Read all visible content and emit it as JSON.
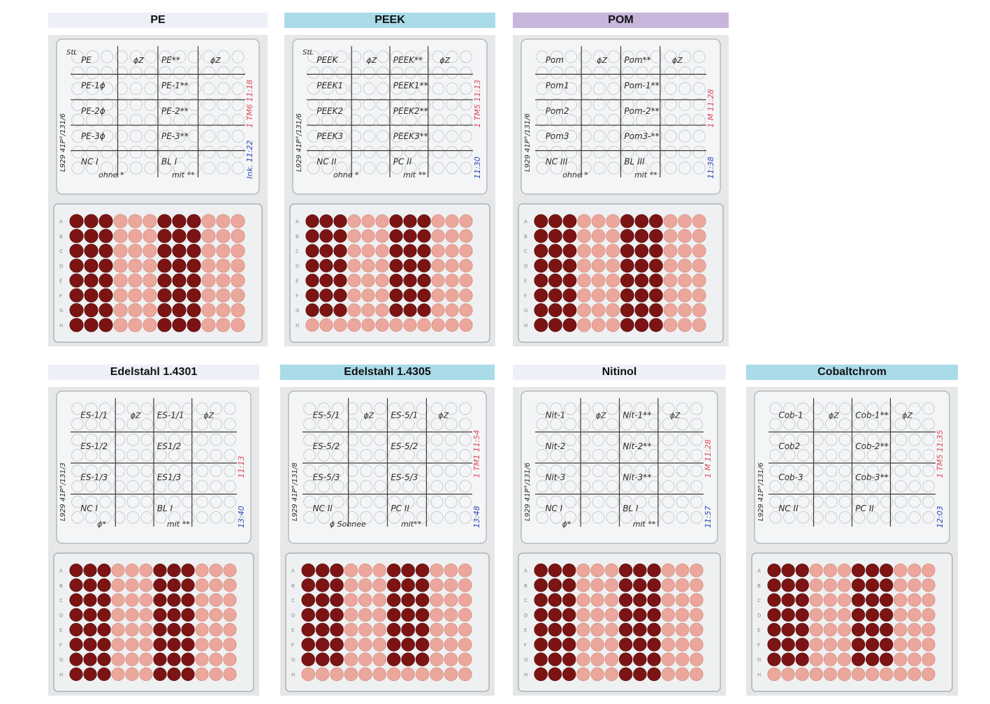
{
  "colors": {
    "header_gray": "#edf0f6",
    "header_blue": "#a9dbe9",
    "header_purple": "#c7b5dc",
    "dark_well": "#7d1414",
    "light_well": "#eba79b",
    "ink_black": "#2a2a2a",
    "ink_red": "#e04a5c",
    "ink_blue": "#2c4bb8"
  },
  "panels": [
    {
      "title": "PE",
      "header_color": "#edf0f6",
      "top_plate": {
        "corner": "StL",
        "rows": [
          [
            "PE",
            "ϕZ",
            "PE**",
            "ϕZ"
          ],
          [
            "PE-1ϕ",
            "",
            "PE-1**",
            ""
          ],
          [
            "PE-2ϕ",
            "",
            "PE-2**",
            ""
          ],
          [
            "PE-3ϕ",
            "",
            "PE-3**",
            ""
          ],
          [
            "NC I",
            "",
            "BL I",
            ""
          ]
        ],
        "bottom_note": [
          "ohne *",
          "mit **"
        ],
        "side_left": "L929 41P°/131/6",
        "side_red": "1 TM6 11:18",
        "side_blue": "Ink. 11:22"
      },
      "bottom_plate": {
        "dark_cols": [
          0,
          1,
          2,
          6,
          7,
          8
        ],
        "dark_rows": 8
      }
    },
    {
      "title": "PEEK",
      "header_color": "#a9dbe9",
      "top_plate": {
        "corner": "StL",
        "rows": [
          [
            "PEEK",
            "ϕZ",
            "PEEK**",
            "ϕZ"
          ],
          [
            "PEEK1",
            "",
            "PEEK1**",
            ""
          ],
          [
            "PEEK2",
            "",
            "PEEK2**",
            ""
          ],
          [
            "PEEK3",
            "",
            "PEEK3**",
            ""
          ],
          [
            "NC II",
            "",
            "PC II",
            ""
          ]
        ],
        "bottom_note": [
          "ohne *",
          "mit **"
        ],
        "side_left": "L929 41P°/131/6",
        "side_red": "1 TM5 11:13",
        "side_blue": "11:30"
      },
      "bottom_plate": {
        "dark_cols": [
          0,
          1,
          2,
          6,
          7,
          8
        ],
        "dark_rows": 7
      }
    },
    {
      "title": "POM",
      "header_color": "#c7b5dc",
      "top_plate": {
        "corner": "",
        "rows": [
          [
            "Pom",
            "ϕZ",
            "Pom**",
            "ϕZ"
          ],
          [
            "Pom1",
            "",
            "Pom-1**",
            ""
          ],
          [
            "Pom2",
            "",
            "Pom-2**",
            ""
          ],
          [
            "Pom3",
            "",
            "Pom3-**",
            ""
          ],
          [
            "NC III",
            "",
            "BL III",
            ""
          ]
        ],
        "bottom_note": [
          "ohne *",
          "mit **"
        ],
        "side_left": "L929 41P°/131/6",
        "side_red": "1 M 11:28",
        "side_blue": "11:38"
      },
      "bottom_plate": {
        "dark_cols": [
          0,
          1,
          2,
          6,
          7,
          8
        ],
        "dark_rows": 8
      }
    },
    {
      "title": "Edelstahl 1.4301",
      "header_color": "#edf0f6",
      "top_plate": {
        "corner": "",
        "rows": [
          [
            "ES-1/1",
            "ϕZ",
            "ES-1/1",
            "ϕZ"
          ],
          [
            "ES-1/2",
            "",
            "ES1/2",
            ""
          ],
          [
            "ES-1/3",
            "",
            "ES1/3",
            ""
          ],
          [
            "NC I",
            "",
            "BL I",
            ""
          ]
        ],
        "bottom_note": [
          "ϕ*",
          "mit **"
        ],
        "side_left": "L929 41P°/131/3",
        "side_red": "11:13",
        "side_blue": "13:40"
      },
      "bottom_plate": {
        "dark_cols": [
          0,
          1,
          2,
          6,
          7,
          8
        ],
        "dark_rows": 8
      }
    },
    {
      "title": "Edelstahl 1.4305",
      "header_color": "#a9dbe9",
      "top_plate": {
        "corner": "",
        "rows": [
          [
            "ES-5/1",
            "ϕZ",
            "ES-5/1",
            "ϕZ"
          ],
          [
            "ES-5/2",
            "",
            "ES-5/2",
            ""
          ],
          [
            "ES-5/3",
            "",
            "ES-5/3",
            ""
          ],
          [
            "NC II",
            "",
            "PC II",
            ""
          ]
        ],
        "bottom_note": [
          "ϕ Sohnee",
          "mit**"
        ],
        "side_left": "L929 41P°/131/8",
        "side_red": "1 TM1 11:54",
        "side_blue": "13:48"
      },
      "bottom_plate": {
        "dark_cols": [
          0,
          1,
          2,
          6,
          7,
          8
        ],
        "dark_rows": 7
      }
    },
    {
      "title": "Nitinol",
      "header_color": "#edf0f6",
      "top_plate": {
        "corner": "",
        "rows": [
          [
            "Nit-1",
            "ϕZ",
            "Nit-1**",
            "ϕZ"
          ],
          [
            "Nit-2",
            "",
            "Nit-2**",
            ""
          ],
          [
            "Nit-3",
            "",
            "Nit-3**",
            ""
          ],
          [
            "NC I",
            "",
            "BL I",
            ""
          ]
        ],
        "bottom_note": [
          "ϕ*",
          "mit **"
        ],
        "side_left": "L929 41P°/131/6",
        "side_red": "1 M 11:28",
        "side_blue": "11:57"
      },
      "bottom_plate": {
        "dark_cols": [
          0,
          1,
          2,
          6,
          7,
          8
        ],
        "dark_rows": 8
      }
    },
    {
      "title": "Cobaltchrom",
      "header_color": "#a9dbe9",
      "top_plate": {
        "corner": "",
        "rows": [
          [
            "Cob-1",
            "ϕZ",
            "Cob-1**",
            "ϕZ"
          ],
          [
            "Cob2",
            "",
            "Cob-2**",
            ""
          ],
          [
            "Cob-3",
            "",
            "Cob-3**",
            ""
          ],
          [
            "NC II",
            "",
            "PC II",
            ""
          ]
        ],
        "bottom_note": [
          "",
          ""
        ],
        "side_left": "L929 41P°/131/6",
        "side_red": "1 TM5 11:35",
        "side_blue": "12:03"
      },
      "bottom_plate": {
        "dark_cols": [
          0,
          1,
          2,
          6,
          7,
          8
        ],
        "dark_rows": 7
      }
    }
  ]
}
